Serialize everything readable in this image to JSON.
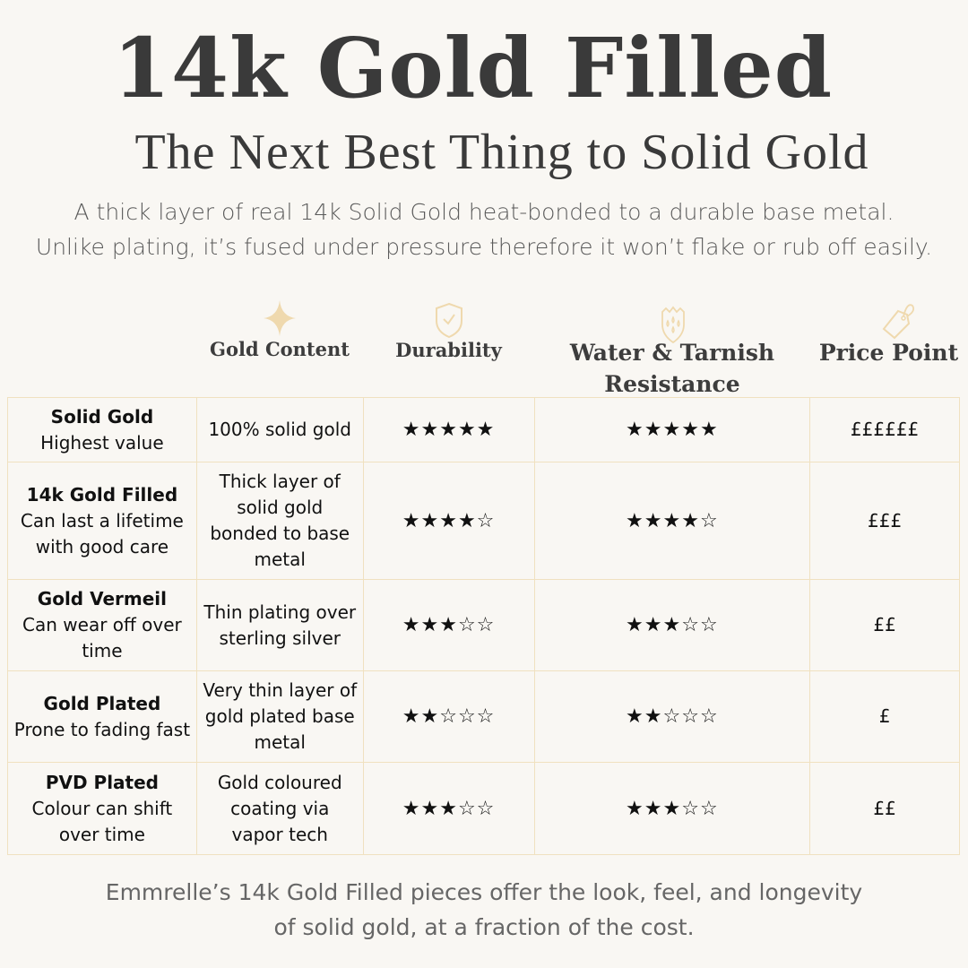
{
  "title": "14k Gold Filled",
  "subtitle": "The Next Best Thing to Solid Gold",
  "description": [
    "A thick layer of real 14k Solid Gold heat-bonded to a durable base metal.",
    "Unlike plating, it’s fused under pressure therefore it won’t flake or rub off easily."
  ],
  "accent_color": "#efd9ae",
  "columns": [
    {
      "label": "Gold Content",
      "icon": "sparkle-icon"
    },
    {
      "label": "Durability",
      "icon": "shield-check-icon"
    },
    {
      "label_line1": "Water &  Tarnish",
      "label_line2": "Resistance",
      "icon": "shield-droplets-icon"
    },
    {
      "label": "Price Point",
      "icon": "price-tag-icon"
    }
  ],
  "rows": [
    {
      "name": "Solid Gold",
      "note": "Highest value",
      "content": "100% solid gold",
      "durability": "★★★★★",
      "resistance": "★★★★★",
      "price": "££££££",
      "durability_rating": 5,
      "resistance_rating": 5
    },
    {
      "name": "14k Gold Filled",
      "note": "Can last a lifetime with good care",
      "content": "Thick layer of solid gold bonded to base metal",
      "durability": "★★★★☆",
      "resistance": "★★★★☆",
      "price": "£££",
      "durability_rating": 4,
      "resistance_rating": 4
    },
    {
      "name": "Gold Vermeil",
      "note": "Can wear off over time",
      "content": "Thin plating over sterling silver",
      "durability": "★★★☆☆",
      "resistance": "★★★☆☆",
      "price": "££",
      "durability_rating": 3,
      "resistance_rating": 3
    },
    {
      "name": "Gold Plated",
      "note": "Prone to fading fast",
      "content": "Very thin layer of gold plated base metal",
      "durability": "★★☆☆☆",
      "resistance": "★★☆☆☆",
      "price": "£",
      "durability_rating": 2,
      "resistance_rating": 2
    },
    {
      "name": "PVD Plated",
      "note": "Colour can shift over time",
      "content": "Gold coloured coating via vapor tech",
      "durability": "★★★☆☆",
      "resistance": "★★★☆☆",
      "price": "££",
      "durability_rating": 3,
      "resistance_rating": 3
    }
  ],
  "footer": [
    "Emmrelle’s 14k Gold Filled pieces offer the look, feel, and longevity",
    "of solid gold, at a fraction of the cost."
  ]
}
